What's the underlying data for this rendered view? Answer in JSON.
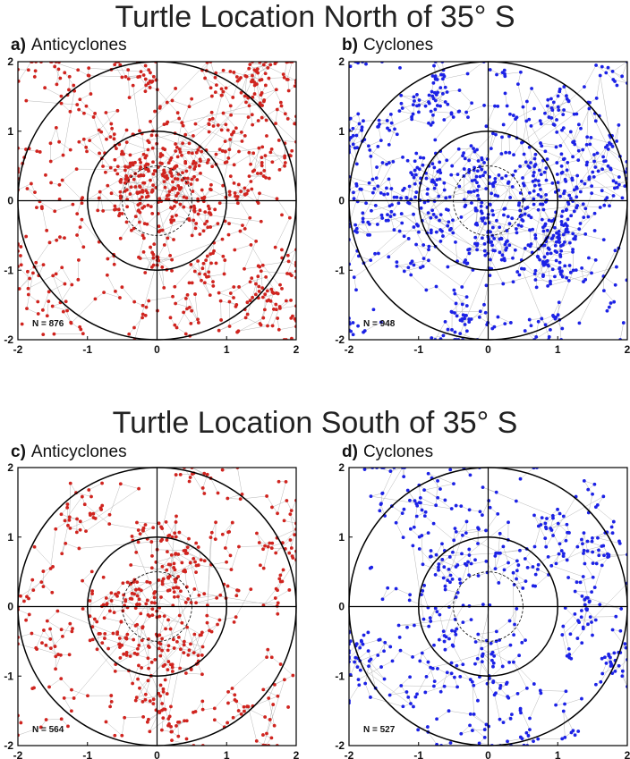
{
  "figure": {
    "top_title": "Turtle Location North of 35° S",
    "bottom_title": "Turtle Location South of 35° S"
  },
  "chart_data": [
    {
      "type": "scatter",
      "panel": "a)",
      "title": "Anticyclones",
      "n_label": "N = 876",
      "n_points": 876,
      "color": "#d0241f",
      "xlim": [
        -2,
        2
      ],
      "ylim": [
        -2,
        2
      ],
      "xticks": [
        "-2",
        "-1",
        "0",
        "1",
        "2"
      ],
      "yticks": [
        "-2",
        "-1",
        "0",
        "1",
        "2"
      ],
      "reference_circles_radius": [
        0.5,
        1,
        2
      ],
      "distribution_note": "denser near center (0 to 0.5) and in upper half"
    },
    {
      "type": "scatter",
      "panel": "b)",
      "title": "Cyclones",
      "n_label": "N = 948",
      "n_points": 948,
      "color": "#1c22e6",
      "xlim": [
        -2,
        2
      ],
      "ylim": [
        -2,
        2
      ],
      "xticks": [
        "-2",
        "-1",
        "0",
        "1",
        "2"
      ],
      "yticks": [
        "-2",
        "-1",
        "0",
        "1",
        "2"
      ],
      "reference_circles_radius": [
        0.5,
        1,
        2
      ],
      "distribution_note": "broadly spread, denser near y≈0"
    },
    {
      "type": "scatter",
      "panel": "c)",
      "title": "Anticyclones",
      "n_label": "N = 564",
      "n_points": 564,
      "color": "#d0241f",
      "xlim": [
        -2,
        2
      ],
      "ylim": [
        -2,
        2
      ],
      "xticks": [
        "-2",
        "-1",
        "0",
        "1",
        "2"
      ],
      "yticks": [
        "-2",
        "-1",
        "0",
        "1",
        "2"
      ],
      "reference_circles_radius": [
        0.5,
        1,
        2
      ],
      "distribution_note": "denser within radius 1"
    },
    {
      "type": "scatter",
      "panel": "d)",
      "title": "Cyclones",
      "n_label": "N = 527",
      "n_points": 527,
      "color": "#1c22e6",
      "xlim": [
        -2,
        2
      ],
      "ylim": [
        -2,
        2
      ],
      "xticks": [
        "-2",
        "-1",
        "0",
        "1",
        "2"
      ],
      "yticks": [
        "-2",
        "-1",
        "0",
        "1",
        "2"
      ],
      "reference_circles_radius": [
        0.5,
        1,
        2
      ],
      "distribution_note": "spread evenly, sparse at center"
    }
  ]
}
